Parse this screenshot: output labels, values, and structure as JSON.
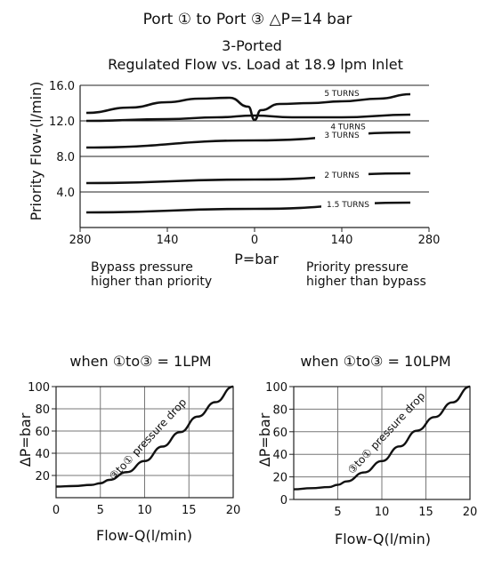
{
  "header": {
    "port_line": "Port ① to Port ③ △P=14 bar",
    "subtitle1": "3-Ported",
    "subtitle2": "Regulated Flow vs. Load at 18.9 lpm Inlet"
  },
  "chart_data": [
    {
      "type": "line",
      "ylabel": "Priority Flow-(l/min)",
      "xlabel": "P=bar",
      "x_ticks": [
        "280",
        "140",
        "0",
        "140",
        "280"
      ],
      "y_ticks": [
        "4.0",
        "8.0",
        "12.0",
        "16.0"
      ],
      "xlim": [
        -280,
        280
      ],
      "ylim": [
        0,
        16
      ],
      "grid": "horizontal",
      "left_note": [
        "Bypass pressure",
        "higher than priority"
      ],
      "right_note": [
        "Priority pressure",
        "higher than bypass"
      ],
      "series": [
        {
          "name": "5 TURNS",
          "x": [
            -270,
            -200,
            -140,
            -90,
            -40,
            -10,
            0,
            10,
            40,
            90,
            140,
            200,
            250
          ],
          "y": [
            12.9,
            13.5,
            14.1,
            14.5,
            14.6,
            13.6,
            12.1,
            13.2,
            13.9,
            14.0,
            14.2,
            14.5,
            15.0
          ]
        },
        {
          "name": "4 TURNS",
          "x": [
            -270,
            -140,
            -60,
            0,
            60,
            140,
            250
          ],
          "y": [
            12.0,
            12.2,
            12.4,
            12.6,
            12.4,
            12.4,
            12.7
          ]
        },
        {
          "name": "3 TURNS",
          "x": [
            -270,
            0,
            250
          ],
          "y": [
            9.0,
            9.8,
            10.7
          ]
        },
        {
          "name": "2 TURNS",
          "x": [
            -270,
            0,
            250
          ],
          "y": [
            5.0,
            5.4,
            6.1
          ]
        },
        {
          "name": "1.5 TURNS",
          "x": [
            -270,
            0,
            250
          ],
          "y": [
            1.7,
            2.1,
            2.8
          ]
        }
      ]
    },
    {
      "type": "line",
      "title": "when ①to③ = 1LPM",
      "ylabel": "ΔP=bar",
      "xlabel": "Flow-Q(l/min)",
      "x_ticks": [
        "0",
        "5",
        "10",
        "15",
        "20"
      ],
      "y_ticks": [
        "20",
        "40",
        "60",
        "80",
        "100"
      ],
      "xlim": [
        0,
        20
      ],
      "ylim": [
        0,
        100
      ],
      "grid": "both",
      "annotation": "③to① pressure drop",
      "x": [
        0,
        2,
        4,
        5,
        6,
        8,
        10,
        12,
        14,
        16,
        18,
        20
      ],
      "y": [
        10,
        10.5,
        11.5,
        13,
        16,
        23,
        33,
        46,
        59,
        73,
        86,
        100
      ]
    },
    {
      "type": "line",
      "title": "when ①to③ = 10LPM",
      "ylabel": "ΔP=bar",
      "xlabel": "Flow-Q(l/min)",
      "x_ticks": [
        "5",
        "10",
        "15",
        "20"
      ],
      "y_ticks": [
        "0",
        "20",
        "40",
        "60",
        "80",
        "100"
      ],
      "xlim": [
        0,
        20
      ],
      "ylim": [
        0,
        100
      ],
      "grid": "both",
      "annotation": "③to① pressure drop",
      "x": [
        0,
        2,
        4,
        5,
        6,
        8,
        10,
        12,
        14,
        16,
        18,
        20
      ],
      "y": [
        9,
        10,
        11,
        13,
        16,
        24,
        34,
        47,
        61,
        73,
        86,
        100
      ]
    }
  ]
}
